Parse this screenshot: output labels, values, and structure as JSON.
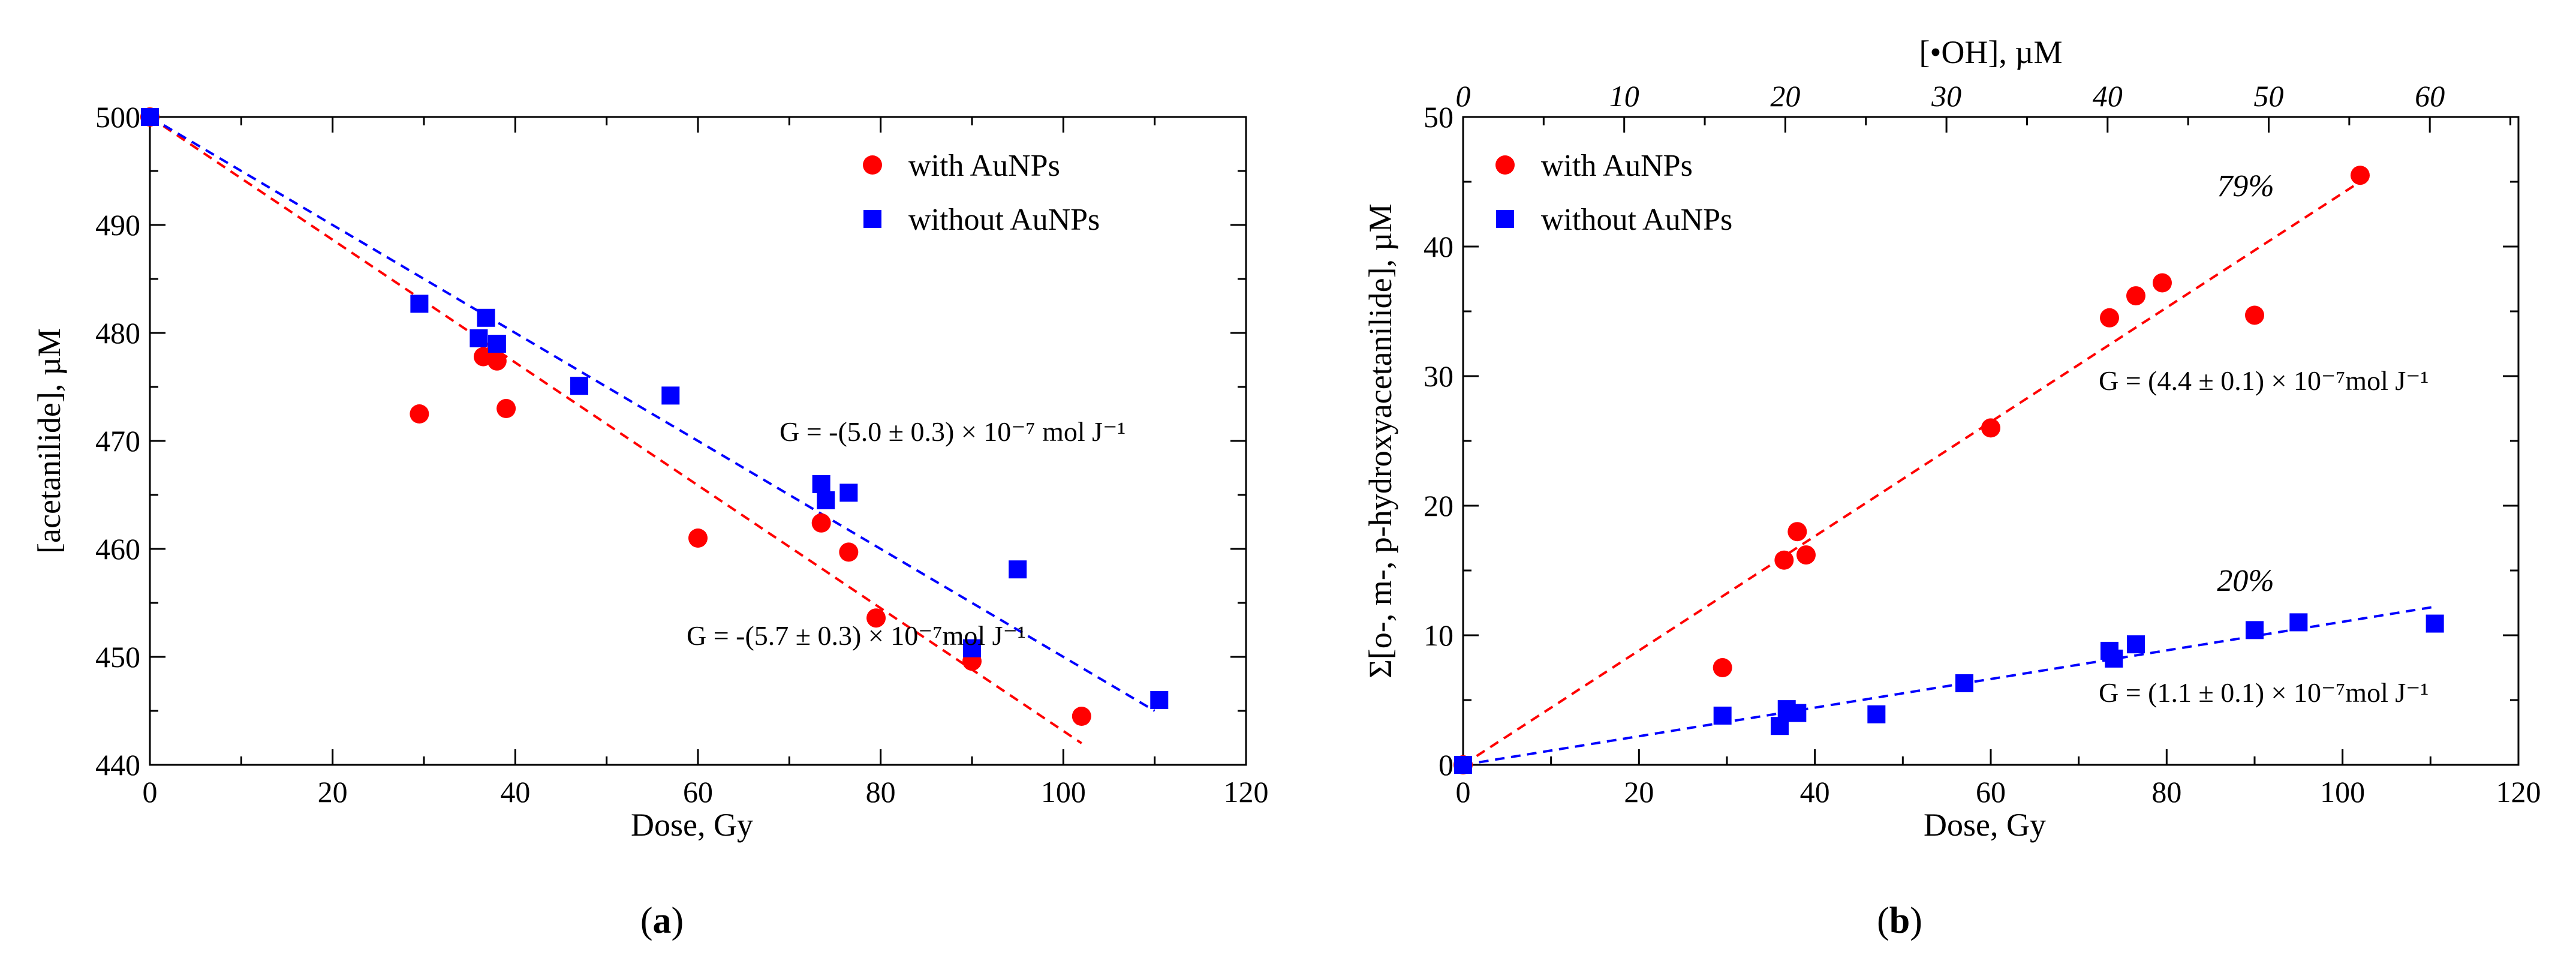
{
  "chart_data": [
    {
      "type": "scatter",
      "panel": "a",
      "panel_label_open": "(",
      "panel_label_letter": "a",
      "panel_label_close": ")",
      "xlabel": "Dose, Gy",
      "ylabel": "[acetanilide], µM",
      "xlim": [
        0,
        120
      ],
      "ylim": [
        440,
        500
      ],
      "xticks": [
        0,
        20,
        40,
        60,
        80,
        100,
        120
      ],
      "yticks": [
        440,
        450,
        460,
        470,
        480,
        490,
        500
      ],
      "legend_position": "top-right",
      "series": [
        {
          "name": "with AuNPs",
          "marker": "circle",
          "color": "#ff0000",
          "points": [
            [
              0,
              500
            ],
            [
              29.5,
              472.5
            ],
            [
              36.5,
              477.8
            ],
            [
              37.5,
              477.9
            ],
            [
              38,
              477.4
            ],
            [
              39,
              473
            ],
            [
              60,
              461
            ],
            [
              73.5,
              462.4
            ],
            [
              76.5,
              459.7
            ],
            [
              79.5,
              453.6
            ],
            [
              90,
              449.6
            ],
            [
              102,
              444.5
            ]
          ],
          "fit": {
            "x": [
              0,
              102
            ],
            "y": [
              500,
              442
            ]
          },
          "annotation": "G = -(5.7 ± 0.3) × 10⁻⁷mol J⁻¹"
        },
        {
          "name": "without AuNPs",
          "marker": "square",
          "color": "#0000ff",
          "points": [
            [
              0,
              500
            ],
            [
              29.5,
              482.7
            ],
            [
              36,
              479.5
            ],
            [
              36.8,
              481.4
            ],
            [
              38,
              479
            ],
            [
              47,
              475.1
            ],
            [
              57,
              474.2
            ],
            [
              73.5,
              466
            ],
            [
              74,
              464.5
            ],
            [
              76.5,
              465.2
            ],
            [
              90,
              450.8
            ],
            [
              95,
              458.1
            ],
            [
              110.5,
              446
            ]
          ],
          "fit": {
            "x": [
              0,
              110
            ],
            "y": [
              500,
              445
            ]
          },
          "annotation": "G = -(5.0 ± 0.3) × 10⁻⁷ mol J⁻¹"
        }
      ]
    },
    {
      "type": "scatter",
      "panel": "b",
      "panel_label_open": "(",
      "panel_label_letter": "b",
      "panel_label_close": ")",
      "xlabel": "Dose, Gy",
      "ylabel": "Σ[o-, m-, p-hydroxyacetanilide], µM",
      "x2label": "[•OH], µM",
      "xlim": [
        0,
        120
      ],
      "ylim": [
        0,
        50
      ],
      "x2lim": [
        0,
        65.5
      ],
      "xticks": [
        0,
        20,
        40,
        60,
        80,
        100,
        120
      ],
      "yticks": [
        0,
        10,
        20,
        30,
        40,
        50
      ],
      "x2ticks": [
        0,
        10,
        20,
        30,
        40,
        50,
        60
      ],
      "legend_position": "top-left",
      "series": [
        {
          "name": "with AuNPs",
          "marker": "circle",
          "color": "#ff0000",
          "points": [
            [
              0,
              0
            ],
            [
              29.5,
              7.5
            ],
            [
              36.5,
              15.8
            ],
            [
              38,
              18
            ],
            [
              39,
              16.2
            ],
            [
              60,
              26
            ],
            [
              73.5,
              34.5
            ],
            [
              76.5,
              36.2
            ],
            [
              79.5,
              37.2
            ],
            [
              90,
              34.7
            ],
            [
              102,
              45.5
            ]
          ],
          "fit": {
            "x": [
              0,
              102
            ],
            "y": [
              0,
              45
            ]
          },
          "annotation": "G = (4.4 ± 0.1) × 10⁻⁷mol J⁻¹",
          "percent": "79%"
        },
        {
          "name": "without AuNPs",
          "marker": "square",
          "color": "#0000ff",
          "points": [
            [
              0,
              0
            ],
            [
              29.5,
              3.8
            ],
            [
              36,
              3
            ],
            [
              36.8,
              4.3
            ],
            [
              38,
              4
            ],
            [
              47,
              3.9
            ],
            [
              57,
              6.3
            ],
            [
              73.5,
              8.8
            ],
            [
              74,
              8.2
            ],
            [
              76.5,
              9.3
            ],
            [
              90,
              10.4
            ],
            [
              95,
              11
            ],
            [
              110.5,
              10.9
            ]
          ],
          "fit": {
            "x": [
              0,
              110.5
            ],
            "y": [
              0,
              12.2
            ]
          },
          "annotation": "G = (1.1 ± 0.1) × 10⁻⁷mol J⁻¹",
          "percent": "20%"
        }
      ]
    }
  ]
}
